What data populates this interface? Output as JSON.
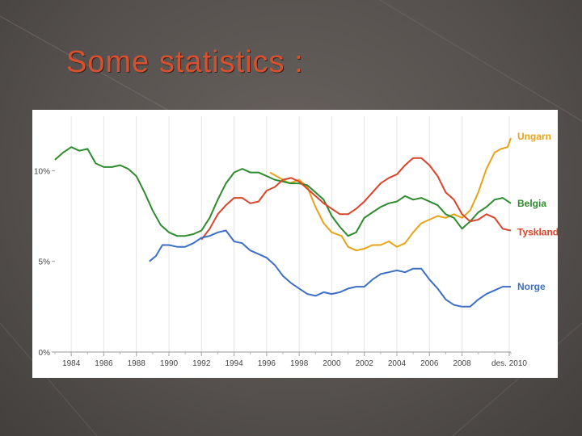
{
  "slide": {
    "title": "Some statistics :"
  },
  "chart_data": {
    "type": "line",
    "title": "",
    "xlabel": "",
    "ylabel": "",
    "xlim": [
      1983.0,
      2011.0
    ],
    "ylim": [
      0,
      13
    ],
    "y_ticks": [
      {
        "value": 0,
        "label": "0%"
      },
      {
        "value": 5,
        "label": "5%"
      },
      {
        "value": 10,
        "label": "10%"
      }
    ],
    "x_ticks": [
      {
        "value": 1984,
        "label": "1984"
      },
      {
        "value": 1986,
        "label": "1986"
      },
      {
        "value": 1988,
        "label": "1988"
      },
      {
        "value": 1990,
        "label": "1990"
      },
      {
        "value": 1992,
        "label": "1992"
      },
      {
        "value": 1994,
        "label": "1994"
      },
      {
        "value": 1996,
        "label": "1996"
      },
      {
        "value": 1998,
        "label": "1998"
      },
      {
        "value": 2000,
        "label": "2000"
      },
      {
        "value": 2002,
        "label": "2002"
      },
      {
        "value": 2004,
        "label": "2004"
      },
      {
        "value": 2006,
        "label": "2006"
      },
      {
        "value": 2008,
        "label": "2008"
      },
      {
        "value": 2010.9,
        "label": "des. 2010"
      }
    ],
    "grid": true,
    "legend_placement": "right, at line ends",
    "series": [
      {
        "name": "Ungarn",
        "color": "#e8a317",
        "points": [
          [
            1996.2,
            9.9
          ],
          [
            1996.8,
            9.6
          ],
          [
            1997.4,
            9.3
          ],
          [
            1998.0,
            9.5
          ],
          [
            1998.5,
            9.1
          ],
          [
            1999.0,
            8.0
          ],
          [
            1999.5,
            7.1
          ],
          [
            2000.0,
            6.6
          ],
          [
            2000.6,
            6.4
          ],
          [
            2001.0,
            5.8
          ],
          [
            2001.5,
            5.6
          ],
          [
            2002.0,
            5.7
          ],
          [
            2002.5,
            5.9
          ],
          [
            2003.0,
            5.9
          ],
          [
            2003.5,
            6.1
          ],
          [
            2004.0,
            5.8
          ],
          [
            2004.5,
            6.0
          ],
          [
            2005.0,
            6.6
          ],
          [
            2005.5,
            7.1
          ],
          [
            2006.0,
            7.3
          ],
          [
            2006.5,
            7.5
          ],
          [
            2007.0,
            7.4
          ],
          [
            2007.5,
            7.6
          ],
          [
            2008.0,
            7.4
          ],
          [
            2008.5,
            7.8
          ],
          [
            2009.0,
            8.8
          ],
          [
            2009.5,
            10.1
          ],
          [
            2010.0,
            11.0
          ],
          [
            2010.4,
            11.2
          ],
          [
            2010.8,
            11.3
          ],
          [
            2011.0,
            11.8
          ]
        ]
      },
      {
        "name": "Belgia",
        "color": "#2e8b2e",
        "points": [
          [
            1983.0,
            10.6
          ],
          [
            1983.5,
            11.0
          ],
          [
            1984.0,
            11.3
          ],
          [
            1984.5,
            11.1
          ],
          [
            1985.0,
            11.2
          ],
          [
            1985.5,
            10.4
          ],
          [
            1986.0,
            10.2
          ],
          [
            1986.5,
            10.2
          ],
          [
            1987.0,
            10.3
          ],
          [
            1987.5,
            10.1
          ],
          [
            1988.0,
            9.7
          ],
          [
            1988.5,
            8.8
          ],
          [
            1989.0,
            7.8
          ],
          [
            1989.5,
            7.0
          ],
          [
            1990.0,
            6.6
          ],
          [
            1990.5,
            6.4
          ],
          [
            1991.0,
            6.4
          ],
          [
            1991.5,
            6.5
          ],
          [
            1992.0,
            6.7
          ],
          [
            1992.5,
            7.4
          ],
          [
            1993.0,
            8.4
          ],
          [
            1993.5,
            9.3
          ],
          [
            1994.0,
            9.9
          ],
          [
            1994.5,
            10.1
          ],
          [
            1995.0,
            9.9
          ],
          [
            1995.5,
            9.9
          ],
          [
            1996.0,
            9.7
          ],
          [
            1996.5,
            9.5
          ],
          [
            1997.0,
            9.4
          ],
          [
            1997.5,
            9.3
          ],
          [
            1998.0,
            9.3
          ],
          [
            1998.5,
            9.2
          ],
          [
            1999.0,
            8.8
          ],
          [
            1999.5,
            8.4
          ],
          [
            2000.0,
            7.5
          ],
          [
            2000.5,
            6.9
          ],
          [
            2001.0,
            6.4
          ],
          [
            2001.5,
            6.6
          ],
          [
            2002.0,
            7.4
          ],
          [
            2002.5,
            7.7
          ],
          [
            2003.0,
            8.0
          ],
          [
            2003.5,
            8.2
          ],
          [
            2004.0,
            8.3
          ],
          [
            2004.5,
            8.6
          ],
          [
            2005.0,
            8.4
          ],
          [
            2005.5,
            8.5
          ],
          [
            2006.0,
            8.3
          ],
          [
            2006.5,
            8.1
          ],
          [
            2007.0,
            7.6
          ],
          [
            2007.5,
            7.4
          ],
          [
            2008.0,
            6.8
          ],
          [
            2008.5,
            7.2
          ],
          [
            2009.0,
            7.7
          ],
          [
            2009.5,
            8.0
          ],
          [
            2010.0,
            8.4
          ],
          [
            2010.5,
            8.5
          ],
          [
            2011.0,
            8.2
          ]
        ]
      },
      {
        "name": "Tyskland",
        "color": "#d9442b",
        "points": [
          [
            1992.0,
            6.2
          ],
          [
            1992.5,
            6.8
          ],
          [
            1993.0,
            7.6
          ],
          [
            1993.5,
            8.1
          ],
          [
            1994.0,
            8.5
          ],
          [
            1994.5,
            8.5
          ],
          [
            1995.0,
            8.2
          ],
          [
            1995.5,
            8.3
          ],
          [
            1996.0,
            8.9
          ],
          [
            1996.5,
            9.1
          ],
          [
            1997.0,
            9.5
          ],
          [
            1997.5,
            9.6
          ],
          [
            1998.0,
            9.4
          ],
          [
            1998.5,
            9.0
          ],
          [
            1999.0,
            8.6
          ],
          [
            1999.5,
            8.2
          ],
          [
            2000.0,
            7.9
          ],
          [
            2000.5,
            7.6
          ],
          [
            2001.0,
            7.6
          ],
          [
            2001.5,
            7.9
          ],
          [
            2002.0,
            8.3
          ],
          [
            2002.5,
            8.8
          ],
          [
            2003.0,
            9.3
          ],
          [
            2003.5,
            9.6
          ],
          [
            2004.0,
            9.8
          ],
          [
            2004.5,
            10.3
          ],
          [
            2005.0,
            10.7
          ],
          [
            2005.5,
            10.7
          ],
          [
            2006.0,
            10.3
          ],
          [
            2006.5,
            9.7
          ],
          [
            2007.0,
            8.8
          ],
          [
            2007.5,
            8.4
          ],
          [
            2008.0,
            7.6
          ],
          [
            2008.5,
            7.2
          ],
          [
            2009.0,
            7.3
          ],
          [
            2009.5,
            7.6
          ],
          [
            2010.0,
            7.4
          ],
          [
            2010.5,
            6.8
          ],
          [
            2011.0,
            6.7
          ]
        ]
      },
      {
        "name": "Norge",
        "color": "#3d6fc4",
        "points": [
          [
            1988.8,
            5.0
          ],
          [
            1989.2,
            5.3
          ],
          [
            1989.6,
            5.9
          ],
          [
            1990.0,
            5.9
          ],
          [
            1990.5,
            5.8
          ],
          [
            1991.0,
            5.8
          ],
          [
            1991.5,
            6.0
          ],
          [
            1992.0,
            6.3
          ],
          [
            1992.5,
            6.4
          ],
          [
            1993.0,
            6.6
          ],
          [
            1993.5,
            6.7
          ],
          [
            1994.0,
            6.1
          ],
          [
            1994.5,
            6.0
          ],
          [
            1995.0,
            5.6
          ],
          [
            1995.5,
            5.4
          ],
          [
            1996.0,
            5.2
          ],
          [
            1996.5,
            4.8
          ],
          [
            1997.0,
            4.2
          ],
          [
            1997.5,
            3.8
          ],
          [
            1998.0,
            3.5
          ],
          [
            1998.5,
            3.2
          ],
          [
            1999.0,
            3.1
          ],
          [
            1999.5,
            3.3
          ],
          [
            2000.0,
            3.2
          ],
          [
            2000.5,
            3.3
          ],
          [
            2001.0,
            3.5
          ],
          [
            2001.5,
            3.6
          ],
          [
            2002.0,
            3.6
          ],
          [
            2002.5,
            4.0
          ],
          [
            2003.0,
            4.3
          ],
          [
            2003.5,
            4.4
          ],
          [
            2004.0,
            4.5
          ],
          [
            2004.5,
            4.4
          ],
          [
            2005.0,
            4.6
          ],
          [
            2005.5,
            4.6
          ],
          [
            2006.0,
            4.0
          ],
          [
            2006.5,
            3.5
          ],
          [
            2007.0,
            2.9
          ],
          [
            2007.5,
            2.6
          ],
          [
            2008.0,
            2.5
          ],
          [
            2008.5,
            2.5
          ],
          [
            2009.0,
            2.9
          ],
          [
            2009.5,
            3.2
          ],
          [
            2010.0,
            3.4
          ],
          [
            2010.5,
            3.6
          ],
          [
            2011.0,
            3.6
          ]
        ]
      }
    ]
  }
}
